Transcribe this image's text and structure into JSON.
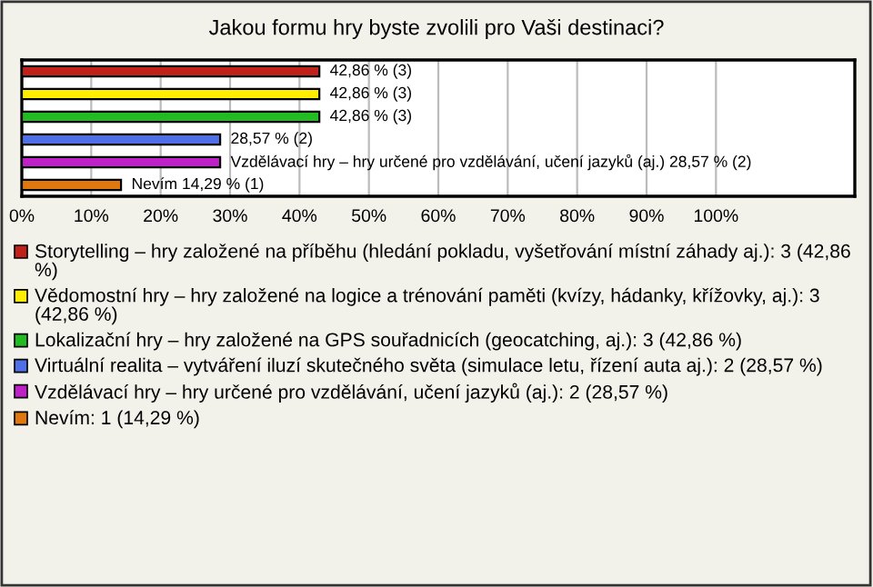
{
  "chart_data": {
    "type": "bar",
    "orientation": "horizontal",
    "title": "Jakou formu hry byste zvolili pro Vaši destinaci?",
    "categories": [
      null,
      null,
      null,
      null,
      null,
      null
    ],
    "series": [
      {
        "name": "Storytelling – hry založené na příběhu (hledání pokladu, vyšetřování místní záhady aj.): 3 (42,86 %)",
        "color": "#c0221a",
        "values": [
          42.86,
          null,
          null,
          null,
          null,
          null
        ],
        "value_labels": [
          "42,86 % (3)",
          null,
          null,
          null,
          null,
          null
        ]
      },
      {
        "name": "Vědomostní hry – hry založené na logice a trénování paměti (kvízy, hádanky, křížovky, aj.): 3 (42,86 %)",
        "color": "#ffee00",
        "values": [
          null,
          42.86,
          null,
          null,
          null,
          null
        ],
        "value_labels": [
          null,
          "42,86 % (3)",
          null,
          null,
          null,
          null
        ]
      },
      {
        "name": "Lokalizační hry – hry založené na GPS souřadnicích (geocatching, aj.): 3 (42,86 %)",
        "color": "#22bb22",
        "values": [
          null,
          null,
          42.86,
          null,
          null,
          null
        ],
        "value_labels": [
          null,
          null,
          "42,86 % (3)",
          null,
          null,
          null
        ]
      },
      {
        "name": "Virtuální realita – vytváření iluzí skutečného světa (simulace letu, řízení auta aj.): 2 (28,57 %)",
        "color": "#4f6fe8",
        "values": [
          null,
          null,
          null,
          28.57,
          null,
          null
        ],
        "value_labels": [
          null,
          null,
          null,
          "28,57 % (2)",
          null,
          null
        ]
      },
      {
        "name": "Vzdělávací hry – hry určené pro vzdělávání, učení jazyků (aj.): 2 (28,57 %)",
        "color": "#c020c8",
        "values": [
          null,
          null,
          null,
          null,
          28.57,
          null
        ],
        "value_labels": [
          null,
          null,
          null,
          null,
          "Vzdělávací hry – hry určené pro vzdělávání, učení jazyků (aj.) 28,57 % (2)",
          null
        ]
      },
      {
        "name": "Nevím: 1 (14,29 %)",
        "color": "#e07810",
        "values": [
          null,
          null,
          null,
          null,
          null,
          14.29
        ],
        "value_labels": [
          null,
          null,
          null,
          null,
          null,
          "Nevím 14,29 % (1)"
        ]
      }
    ],
    "xlim": [
      0,
      120
    ],
    "xticks": [
      {
        "value": 0,
        "label": "0%"
      },
      {
        "value": 10,
        "label": "10%"
      },
      {
        "value": 20,
        "label": "20%"
      },
      {
        "value": 30,
        "label": "30%"
      },
      {
        "value": 40,
        "label": "40%"
      },
      {
        "value": 50,
        "label": "50%"
      },
      {
        "value": 60,
        "label": "60%"
      },
      {
        "value": 70,
        "label": "70%"
      },
      {
        "value": 80,
        "label": "80%"
      },
      {
        "value": 90,
        "label": "90%"
      },
      {
        "value": 100,
        "label": "100%"
      }
    ],
    "grid": "x",
    "legend": "bottom"
  }
}
